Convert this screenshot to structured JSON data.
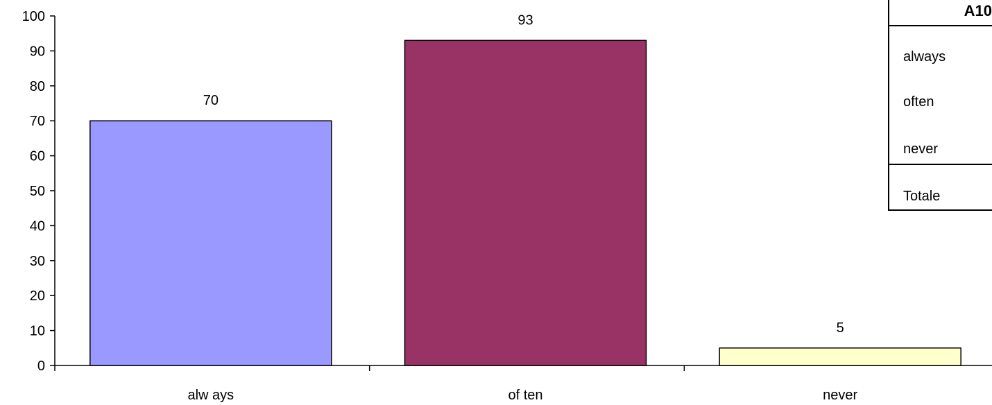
{
  "chart_data": {
    "type": "bar",
    "categories": [
      "alw ays",
      "of ten",
      "never"
    ],
    "values": [
      70,
      93,
      5
    ],
    "data_labels": [
      "70",
      "93",
      "5"
    ],
    "colors": [
      "#9999FF",
      "#993366",
      "#FFFFCC"
    ],
    "ylim": [
      0,
      100
    ],
    "yticks": [
      "0",
      "10",
      "20",
      "30",
      "40",
      "50",
      "60",
      "70",
      "80",
      "90",
      "100"
    ],
    "grid": false,
    "legend": "none"
  },
  "table": {
    "title": "A10",
    "rows": [
      "always",
      "often",
      "never"
    ],
    "total_label": "Totale"
  }
}
